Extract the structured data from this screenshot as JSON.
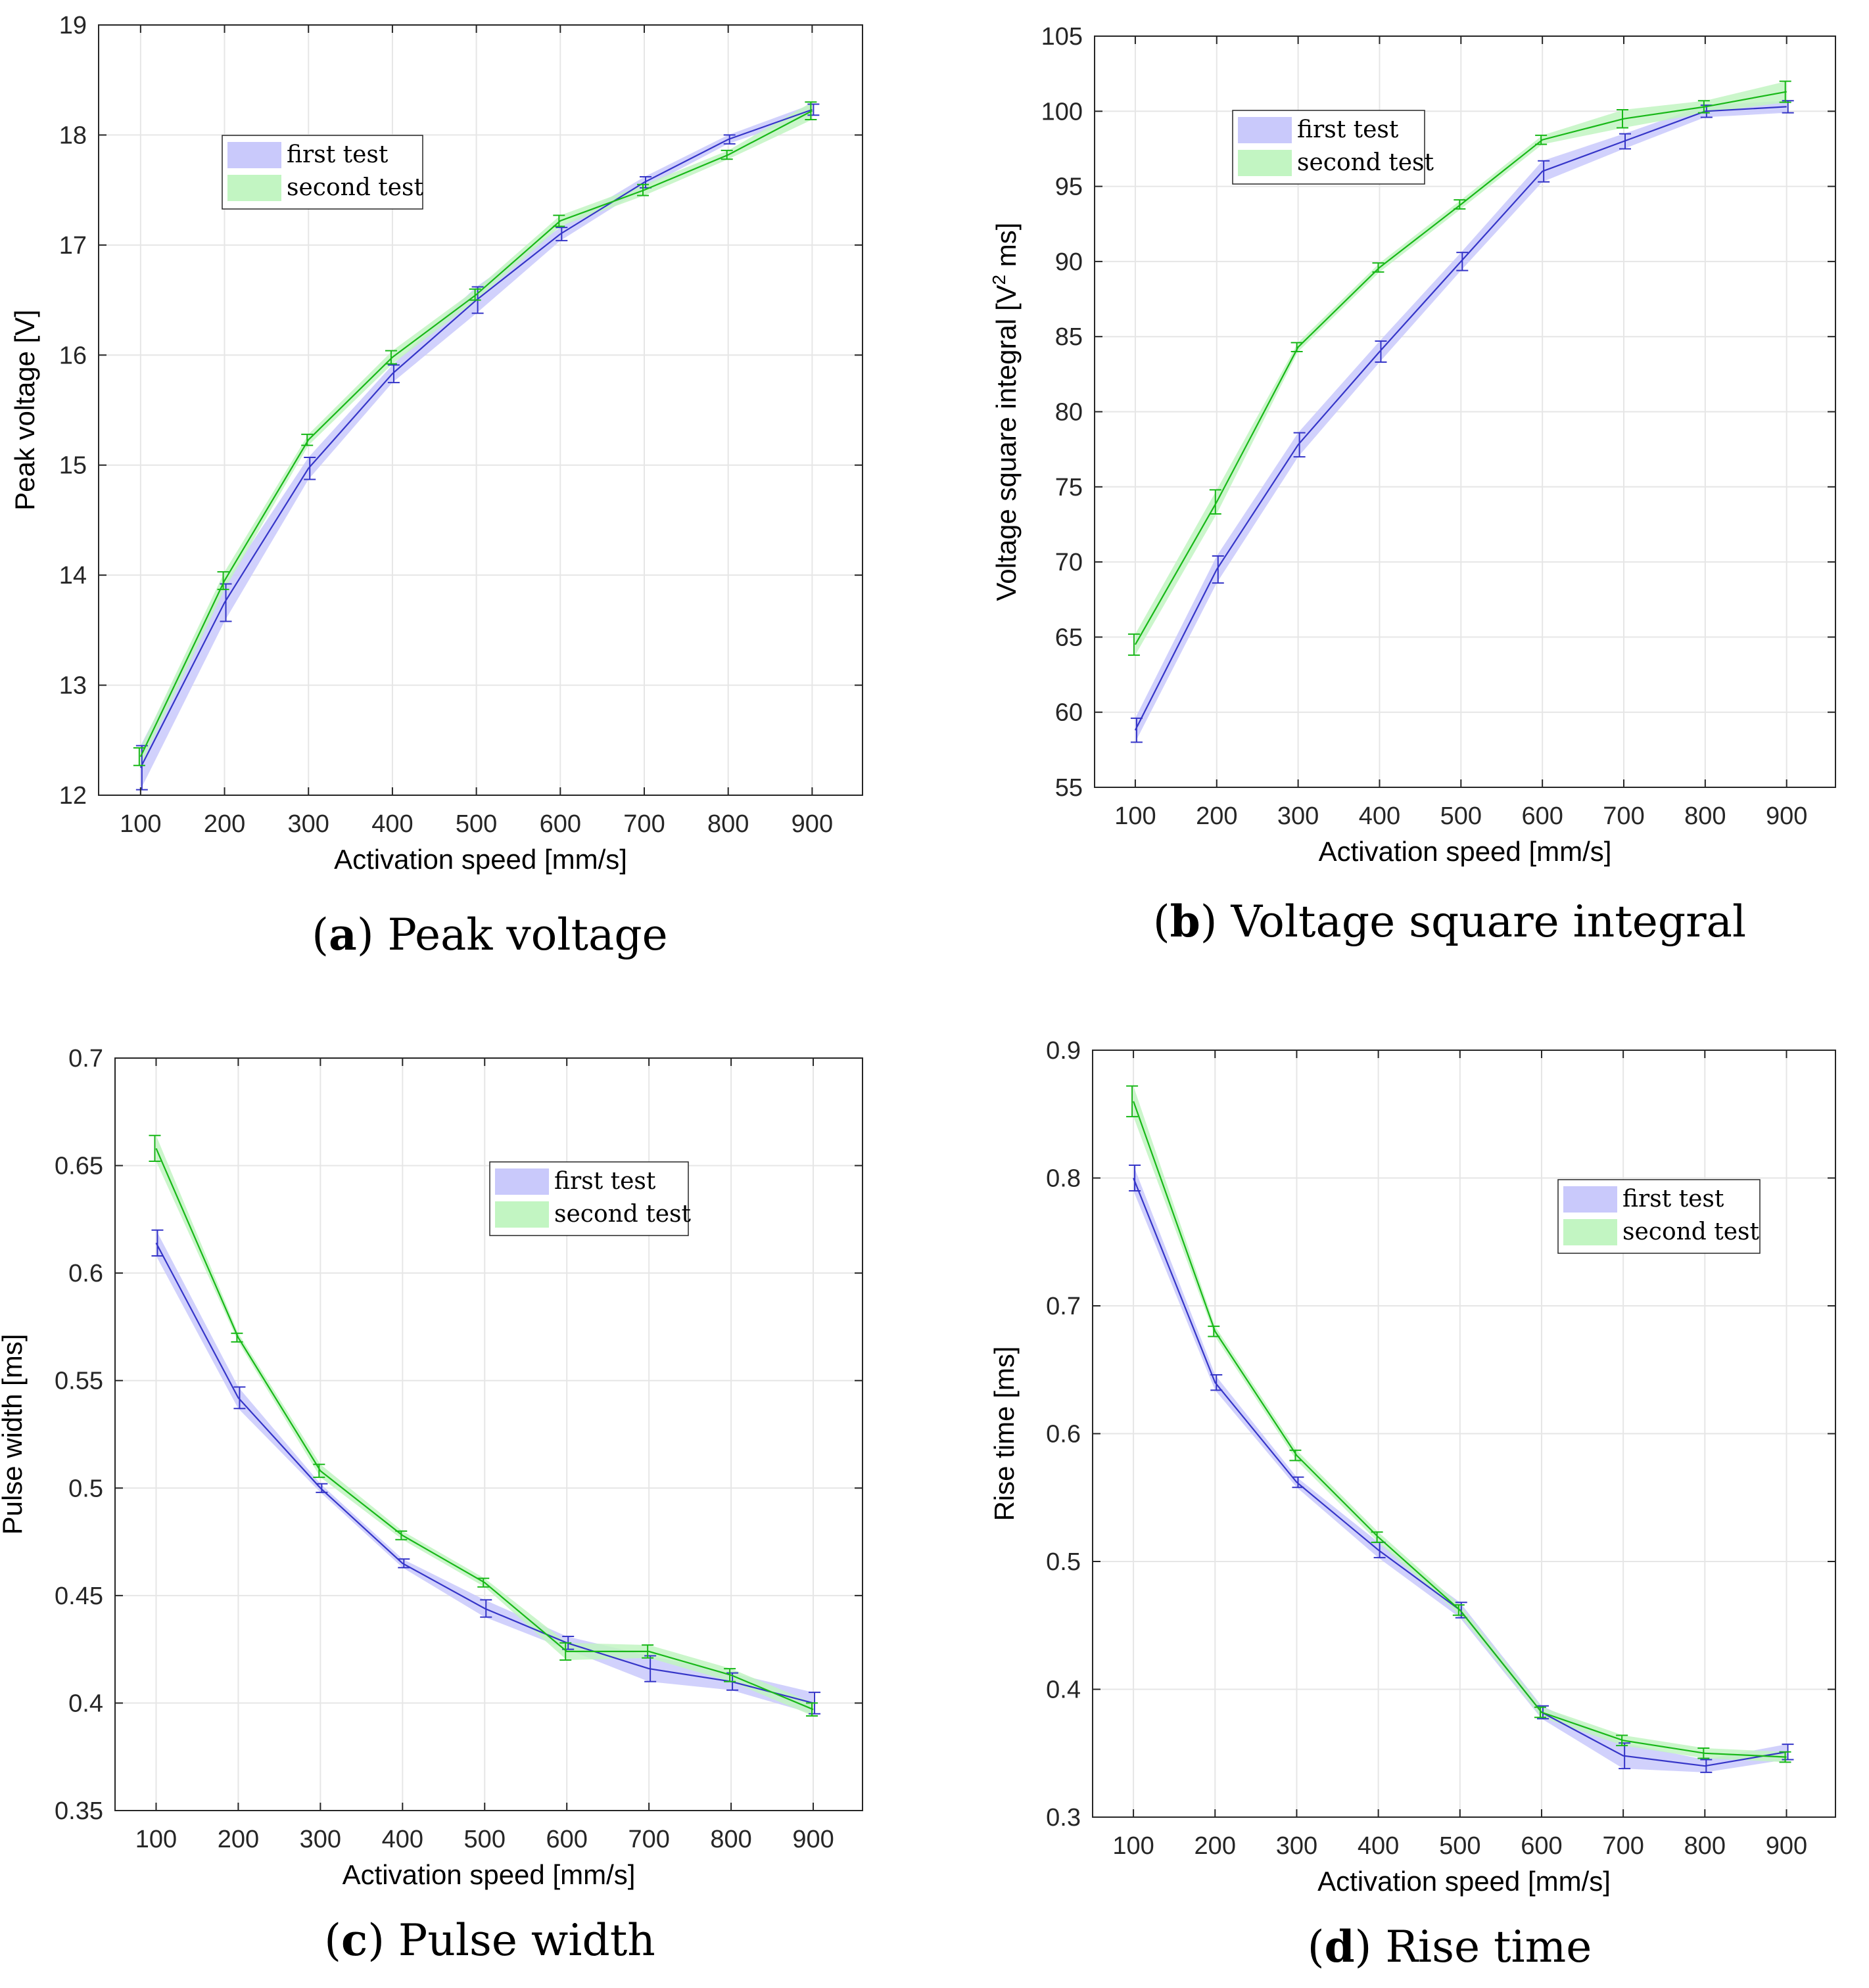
{
  "chart_data": [
    {
      "id": "a",
      "type": "line",
      "caption_letter": "a",
      "caption_text": "Peak voltage",
      "xlabel": "Activation speed [mm/s]",
      "ylabel": "Peak voltage [V]",
      "ylabel_sup": "",
      "ylabel_tail": "",
      "xlim": [
        50,
        960
      ],
      "ylim": [
        12,
        19
      ],
      "xticks": [
        100,
        200,
        300,
        400,
        500,
        600,
        700,
        800,
        900
      ],
      "xtick_labels": [
        "100",
        "200",
        "300",
        "400",
        "500",
        "600",
        "700",
        "800",
        "900"
      ],
      "yticks": [
        12,
        13,
        14,
        15,
        16,
        17,
        18,
        19
      ],
      "ytick_labels": [
        "12",
        "13",
        "14",
        "15",
        "16",
        "17",
        "18",
        "19"
      ],
      "grid": true,
      "legend": {
        "position": "upper-left",
        "entries": [
          "first test",
          "second test"
        ]
      },
      "series": [
        {
          "name": "first test",
          "color": "#3535c8",
          "band_color": "#c9c9fb",
          "x": [
            100,
            200,
            300,
            400,
            500,
            600,
            700,
            800,
            900
          ],
          "values": [
            12.25,
            13.75,
            14.97,
            15.83,
            16.5,
            17.1,
            17.57,
            17.96,
            18.23
          ],
          "err": [
            0.2,
            0.17,
            0.1,
            0.08,
            0.12,
            0.06,
            0.05,
            0.04,
            0.05
          ]
        },
        {
          "name": "second test",
          "color": "#18b818",
          "band_color": "#c2f5c2",
          "x": [
            100,
            200,
            300,
            400,
            500,
            600,
            700,
            800,
            900
          ],
          "values": [
            12.35,
            13.95,
            15.23,
            15.98,
            16.55,
            17.22,
            17.5,
            17.82,
            18.22
          ],
          "err": [
            0.08,
            0.08,
            0.05,
            0.06,
            0.05,
            0.05,
            0.05,
            0.04,
            0.08
          ]
        }
      ]
    },
    {
      "id": "b",
      "type": "line",
      "caption_letter": "b",
      "caption_text": "Voltage square integral",
      "xlabel": "Activation speed [mm/s]",
      "ylabel": "Voltage square integral [V",
      "ylabel_sup": "2",
      "ylabel_tail": " ms]",
      "xlim": [
        50,
        960
      ],
      "ylim": [
        55,
        105
      ],
      "xticks": [
        100,
        200,
        300,
        400,
        500,
        600,
        700,
        800,
        900
      ],
      "xtick_labels": [
        "100",
        "200",
        "300",
        "400",
        "500",
        "600",
        "700",
        "800",
        "900"
      ],
      "yticks": [
        55,
        60,
        65,
        70,
        75,
        80,
        85,
        90,
        95,
        100,
        105
      ],
      "ytick_labels": [
        "55",
        "60",
        "65",
        "70",
        "75",
        "80",
        "85",
        "90",
        "95",
        "100",
        "105"
      ],
      "grid": true,
      "legend": {
        "position": "upper-left",
        "entries": [
          "first test",
          "second test"
        ]
      },
      "series": [
        {
          "name": "first test",
          "color": "#3535c8",
          "band_color": "#c9c9fb",
          "x": [
            100,
            200,
            300,
            400,
            500,
            600,
            700,
            800,
            900
          ],
          "values": [
            58.8,
            69.5,
            77.8,
            84,
            90,
            96,
            98,
            100,
            100.3
          ],
          "err": [
            0.8,
            0.9,
            0.8,
            0.7,
            0.6,
            0.7,
            0.5,
            0.4,
            0.4
          ]
        },
        {
          "name": "second test",
          "color": "#18b818",
          "band_color": "#c2f5c2",
          "x": [
            100,
            200,
            300,
            400,
            500,
            600,
            700,
            800,
            900
          ],
          "values": [
            64.5,
            74,
            84.3,
            89.6,
            93.8,
            98.1,
            99.5,
            100.3,
            101.3
          ],
          "err": [
            0.7,
            0.8,
            0.3,
            0.3,
            0.3,
            0.3,
            0.6,
            0.4,
            0.7
          ]
        }
      ]
    },
    {
      "id": "c",
      "type": "line",
      "caption_letter": "c",
      "caption_text": "Pulse width",
      "xlabel": "Activation speed [mm/s]",
      "ylabel": "Pulse width [ms]",
      "ylabel_sup": "",
      "ylabel_tail": "",
      "xlim": [
        50,
        960
      ],
      "ylim": [
        0.35,
        0.7
      ],
      "xticks": [
        100,
        200,
        300,
        400,
        500,
        600,
        700,
        800,
        900
      ],
      "xtick_labels": [
        "100",
        "200",
        "300",
        "400",
        "500",
        "600",
        "700",
        "800",
        "900"
      ],
      "yticks": [
        0.35,
        0.4,
        0.45,
        0.5,
        0.55,
        0.6,
        0.65,
        0.7
      ],
      "ytick_labels": [
        "0.35",
        "0.4",
        "0.45",
        "0.5",
        "0.55",
        "0.6",
        "0.65",
        "0.7"
      ],
      "grid": true,
      "legend": {
        "position": "upper-right",
        "entries": [
          "first test",
          "second test"
        ]
      },
      "series": [
        {
          "name": "first test",
          "color": "#3535c8",
          "band_color": "#c9c9fb",
          "x": [
            100,
            200,
            300,
            400,
            500,
            600,
            700,
            800,
            900
          ],
          "values": [
            0.614,
            0.542,
            0.5,
            0.465,
            0.444,
            0.428,
            0.416,
            0.41,
            0.4
          ],
          "err": [
            0.006,
            0.005,
            0.002,
            0.002,
            0.004,
            0.003,
            0.006,
            0.004,
            0.005
          ]
        },
        {
          "name": "second test",
          "color": "#18b818",
          "band_color": "#c2f5c2",
          "x": [
            100,
            200,
            300,
            400,
            500,
            600,
            700,
            800,
            900
          ],
          "values": [
            0.658,
            0.57,
            0.508,
            0.478,
            0.456,
            0.424,
            0.424,
            0.413,
            0.397
          ],
          "err": [
            0.006,
            0.002,
            0.003,
            0.002,
            0.002,
            0.004,
            0.003,
            0.003,
            0.003
          ]
        }
      ]
    },
    {
      "id": "d",
      "type": "line",
      "caption_letter": "d",
      "caption_text": "Rise time",
      "xlabel": "Activation speed [mm/s]",
      "ylabel": "Rise time [ms]",
      "ylabel_sup": "",
      "ylabel_tail": "",
      "xlim": [
        50,
        960
      ],
      "ylim": [
        0.3,
        0.9
      ],
      "xticks": [
        100,
        200,
        300,
        400,
        500,
        600,
        700,
        800,
        900
      ],
      "xtick_labels": [
        "100",
        "200",
        "300",
        "400",
        "500",
        "600",
        "700",
        "800",
        "900"
      ],
      "yticks": [
        0.3,
        0.4,
        0.5,
        0.6,
        0.7,
        0.8,
        0.9
      ],
      "ytick_labels": [
        "0.3",
        "0.4",
        "0.5",
        "0.6",
        "0.7",
        "0.8",
        "0.9"
      ],
      "grid": true,
      "legend": {
        "position": "upper-right",
        "entries": [
          "first test",
          "second test"
        ]
      },
      "series": [
        {
          "name": "first test",
          "color": "#3535c8",
          "band_color": "#c9c9fb",
          "x": [
            100,
            200,
            300,
            400,
            500,
            600,
            700,
            800,
            900
          ],
          "values": [
            0.8,
            0.64,
            0.562,
            0.509,
            0.462,
            0.382,
            0.348,
            0.34,
            0.351
          ],
          "err": [
            0.01,
            0.006,
            0.004,
            0.006,
            0.006,
            0.005,
            0.01,
            0.005,
            0.006
          ]
        },
        {
          "name": "second test",
          "color": "#18b818",
          "band_color": "#c2f5c2",
          "x": [
            100,
            200,
            300,
            400,
            500,
            600,
            700,
            800,
            900
          ],
          "values": [
            0.86,
            0.68,
            0.583,
            0.519,
            0.462,
            0.382,
            0.36,
            0.35,
            0.347
          ],
          "err": [
            0.012,
            0.004,
            0.004,
            0.004,
            0.004,
            0.004,
            0.004,
            0.004,
            0.004
          ]
        }
      ]
    }
  ]
}
